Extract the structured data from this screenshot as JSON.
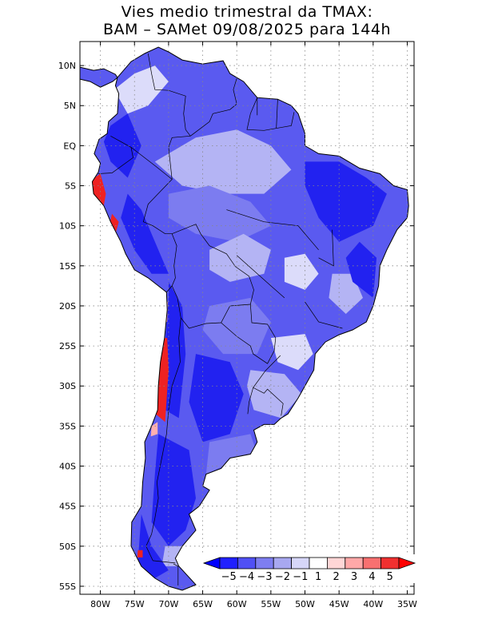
{
  "title": {
    "line1": "Vies medio trimestral da TMAX:",
    "line2": "BAM – SAMet 09/08/2025  para 144h"
  },
  "map": {
    "region": "South America",
    "variable": "TMAX bias",
    "lat_range": [
      -56,
      13
    ],
    "lon_range": [
      -83,
      -34
    ],
    "lat_ticks": [
      {
        "value": 10,
        "label": "10N"
      },
      {
        "value": 5,
        "label": "5N"
      },
      {
        "value": 0,
        "label": "EQ"
      },
      {
        "value": -5,
        "label": "5S"
      },
      {
        "value": -10,
        "label": "10S"
      },
      {
        "value": -15,
        "label": "15S"
      },
      {
        "value": -20,
        "label": "20S"
      },
      {
        "value": -25,
        "label": "25S"
      },
      {
        "value": -30,
        "label": "30S"
      },
      {
        "value": -35,
        "label": "35S"
      },
      {
        "value": -40,
        "label": "40S"
      },
      {
        "value": -45,
        "label": "45S"
      },
      {
        "value": -50,
        "label": "50S"
      },
      {
        "value": -55,
        "label": "55S"
      }
    ],
    "lon_ticks": [
      {
        "value": -80,
        "label": "80W"
      },
      {
        "value": -75,
        "label": "75W"
      },
      {
        "value": -70,
        "label": "70W"
      },
      {
        "value": -65,
        "label": "65W"
      },
      {
        "value": -60,
        "label": "60W"
      },
      {
        "value": -55,
        "label": "55W"
      },
      {
        "value": -50,
        "label": "50W"
      },
      {
        "value": -45,
        "label": "45W"
      },
      {
        "value": -40,
        "label": "40W"
      },
      {
        "value": -35,
        "label": "35W"
      }
    ]
  },
  "colorbar": {
    "labels": [
      "−5",
      "−4",
      "−3",
      "−2",
      "−1",
      "1",
      "2",
      "3",
      "4",
      "5"
    ],
    "colors": {
      "low_arrow": "#0000ff",
      "bins": [
        "#2020ff",
        "#5050f5",
        "#7e7ef0",
        "#a8a8f0",
        "#d6d6f8",
        "#ffffff",
        "#ffd6d6",
        "#ffa8a8",
        "#f87070",
        "#f03030"
      ],
      "high_arrow": "#ff0000"
    }
  },
  "colors": {
    "land_base": "#5a5af0",
    "strong_blue": "#2222f0",
    "medium_blue": "#7c7cf0",
    "light_blue": "#b4b4f4",
    "pale": "#dcdcfa",
    "red": "#ee2222",
    "pink": "#ffb0b0"
  }
}
